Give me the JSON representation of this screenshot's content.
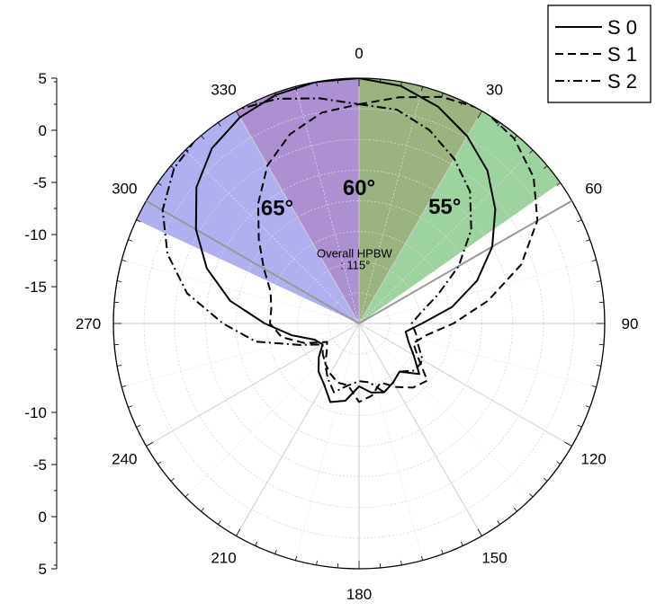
{
  "chart_data": {
    "type": "polar",
    "r_axis": {
      "ticks": [
        5,
        0,
        -5,
        -10,
        -15,
        -10,
        -5,
        0,
        5
      ],
      "r_min": -15,
      "r_max": 5,
      "zero_radius_fraction": 0.15
    },
    "angle_labels": [
      "0",
      "30",
      "60",
      "90",
      "120",
      "150",
      "180",
      "210",
      "240",
      "270",
      "300",
      "330"
    ],
    "angular_grid_step_deg": 15,
    "legend": {
      "placement": "top-right",
      "entries": [
        "S 0",
        "S 1",
        "S 2"
      ]
    },
    "series": [
      {
        "name": "S 0",
        "line_style": "solid",
        "points": [
          [
            0,
            5
          ],
          [
            10,
            4.6
          ],
          [
            20,
            3.6
          ],
          [
            30,
            2.2
          ],
          [
            40,
            0.6
          ],
          [
            50,
            -1.5
          ],
          [
            60,
            -3.8
          ],
          [
            70,
            -6.5
          ],
          [
            80,
            -9.5
          ],
          [
            90,
            -12.5
          ],
          [
            100,
            -14
          ],
          [
            110,
            -13.5
          ],
          [
            120,
            -12.5
          ],
          [
            130,
            -11
          ],
          [
            140,
            -12.5
          ],
          [
            150,
            -12
          ],
          [
            160,
            -11.5
          ],
          [
            170,
            -11.8
          ],
          [
            180,
            -12.5
          ],
          [
            190,
            -11
          ],
          [
            200,
            -10.5
          ],
          [
            210,
            -11.8
          ],
          [
            220,
            -12.5
          ],
          [
            230,
            -13.5
          ],
          [
            240,
            -14.5
          ],
          [
            250,
            -14
          ],
          [
            260,
            -12
          ],
          [
            270,
            -9.5
          ],
          [
            280,
            -6
          ],
          [
            290,
            -3
          ],
          [
            300,
            -0.5
          ],
          [
            310,
            1.8
          ],
          [
            320,
            3.4
          ],
          [
            330,
            4.3
          ],
          [
            340,
            4.8
          ],
          [
            350,
            5
          ]
        ]
      },
      {
        "name": "S 1",
        "line_style": "dashed",
        "points": [
          [
            0,
            2.5
          ],
          [
            10,
            3.5
          ],
          [
            20,
            4.6
          ],
          [
            30,
            5.2
          ],
          [
            40,
            4.6
          ],
          [
            50,
            3.3
          ],
          [
            60,
            1.2
          ],
          [
            70,
            -2
          ],
          [
            80,
            -6
          ],
          [
            90,
            -9.5
          ],
          [
            100,
            -12
          ],
          [
            110,
            -13
          ],
          [
            120,
            -12
          ],
          [
            130,
            -10
          ],
          [
            140,
            -10.5
          ],
          [
            150,
            -11.5
          ],
          [
            160,
            -12.5
          ],
          [
            170,
            -11.5
          ],
          [
            180,
            -11
          ],
          [
            190,
            -12.5
          ],
          [
            200,
            -12.5
          ],
          [
            210,
            -13
          ],
          [
            220,
            -13.5
          ],
          [
            230,
            -14.5
          ],
          [
            240,
            -15
          ],
          [
            250,
            -13
          ],
          [
            260,
            -11
          ],
          [
            270,
            -10
          ],
          [
            280,
            -10
          ],
          [
            290,
            -9.5
          ],
          [
            300,
            -8
          ],
          [
            310,
            -6
          ],
          [
            320,
            -3.5
          ],
          [
            330,
            -1
          ],
          [
            340,
            0.8
          ],
          [
            350,
            2
          ]
        ]
      },
      {
        "name": "S 2",
        "line_style": "dash-dot",
        "points": [
          [
            0,
            2.5
          ],
          [
            10,
            2.3
          ],
          [
            20,
            1.2
          ],
          [
            30,
            -0.3
          ],
          [
            40,
            -2
          ],
          [
            50,
            -4.5
          ],
          [
            60,
            -7.5
          ],
          [
            70,
            -10.5
          ],
          [
            80,
            -12.5
          ],
          [
            90,
            -13.5
          ],
          [
            100,
            -13
          ],
          [
            110,
            -12.5
          ],
          [
            120,
            -11.5
          ],
          [
            130,
            -11.5
          ],
          [
            140,
            -12.5
          ],
          [
            150,
            -12
          ],
          [
            160,
            -11.5
          ],
          [
            170,
            -12.8
          ],
          [
            180,
            -13
          ],
          [
            190,
            -12.5
          ],
          [
            200,
            -11.5
          ],
          [
            210,
            -12.5
          ],
          [
            220,
            -13.5
          ],
          [
            230,
            -14
          ],
          [
            240,
            -14.5
          ],
          [
            250,
            -12.5
          ],
          [
            260,
            -8.5
          ],
          [
            270,
            -5.5
          ],
          [
            280,
            -1.8
          ],
          [
            290,
            1
          ],
          [
            300,
            3.2
          ],
          [
            310,
            4.6
          ],
          [
            320,
            5.2
          ],
          [
            330,
            5.1
          ],
          [
            340,
            4.4
          ],
          [
            350,
            3.4
          ]
        ]
      }
    ],
    "beam_sectors": [
      {
        "label": "60°",
        "start_deg": -30,
        "end_deg": 30,
        "radius_db": 5,
        "color": "#f28080",
        "opacity": 0.55
      },
      {
        "label": "65°",
        "start_deg": -65,
        "end_deg": 0,
        "radius_db": 5,
        "color": "#6f6fe6",
        "opacity": 0.55
      },
      {
        "label": "55°",
        "start_deg": 0,
        "end_deg": 55,
        "radius_db": 5,
        "color": "#4caf50",
        "opacity": 0.55
      }
    ],
    "reference_lines_deg": [
      -60,
      60
    ],
    "annotations": [
      {
        "text": "60°",
        "angle_deg": 0,
        "r_db": -6.2,
        "size": "large"
      },
      {
        "text": "65°",
        "angle_deg": -37,
        "r_db": -5.5,
        "size": "large"
      },
      {
        "text": "55°",
        "angle_deg": 38,
        "r_db": -5.2,
        "size": "large"
      },
      {
        "text": "Overall HPBW",
        "angle_deg": -4,
        "r_db": -12.2,
        "size": "small"
      },
      {
        "text": ": 115°",
        "angle_deg": -4,
        "r_db": -13.3,
        "size": "small"
      }
    ]
  }
}
